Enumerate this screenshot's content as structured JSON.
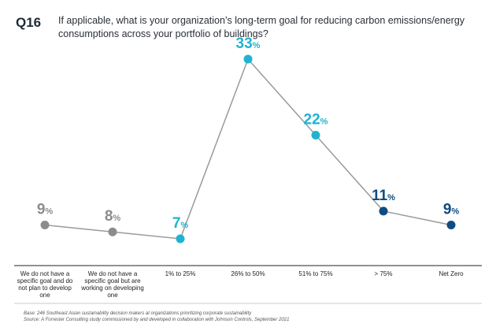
{
  "question": {
    "number": "Q16",
    "text": "If applicable, what is your organization’s long-term goal for reducing carbon emissions/energy consumptions across your portfolio of buildings?"
  },
  "colors": {
    "grey": "#8c8c8c",
    "cyan": "#1fb3d1",
    "navy": "#0f4c81",
    "line": "#9a9a9a"
  },
  "chart_data": {
    "type": "line",
    "categories": [
      "We do not have a specific goal and do not plan to develop one",
      "We do not have a specific goal but are working on developing one",
      "1% to 25%",
      "26% to 50%",
      "51% to 75%",
      "> 75%",
      "Net Zero"
    ],
    "values": [
      9,
      8,
      7,
      33,
      22,
      11,
      9
    ],
    "value_labels": [
      "9",
      "8",
      "7",
      "33",
      "22",
      "11",
      "9"
    ],
    "unit": "%",
    "point_colors": [
      "grey",
      "grey",
      "cyan",
      "cyan",
      "cyan",
      "navy",
      "navy"
    ],
    "ylim": [
      0,
      35
    ],
    "grid": false,
    "legend": "none"
  },
  "footnotes": {
    "base": "Base: 246 Southeast Asian sustainability decision makers at organizations prioritizing corporate sustainability",
    "source": "Source: A Forrester Consulting study commissioned by and developed in collaboration with Johnson Controls, September 2021"
  }
}
